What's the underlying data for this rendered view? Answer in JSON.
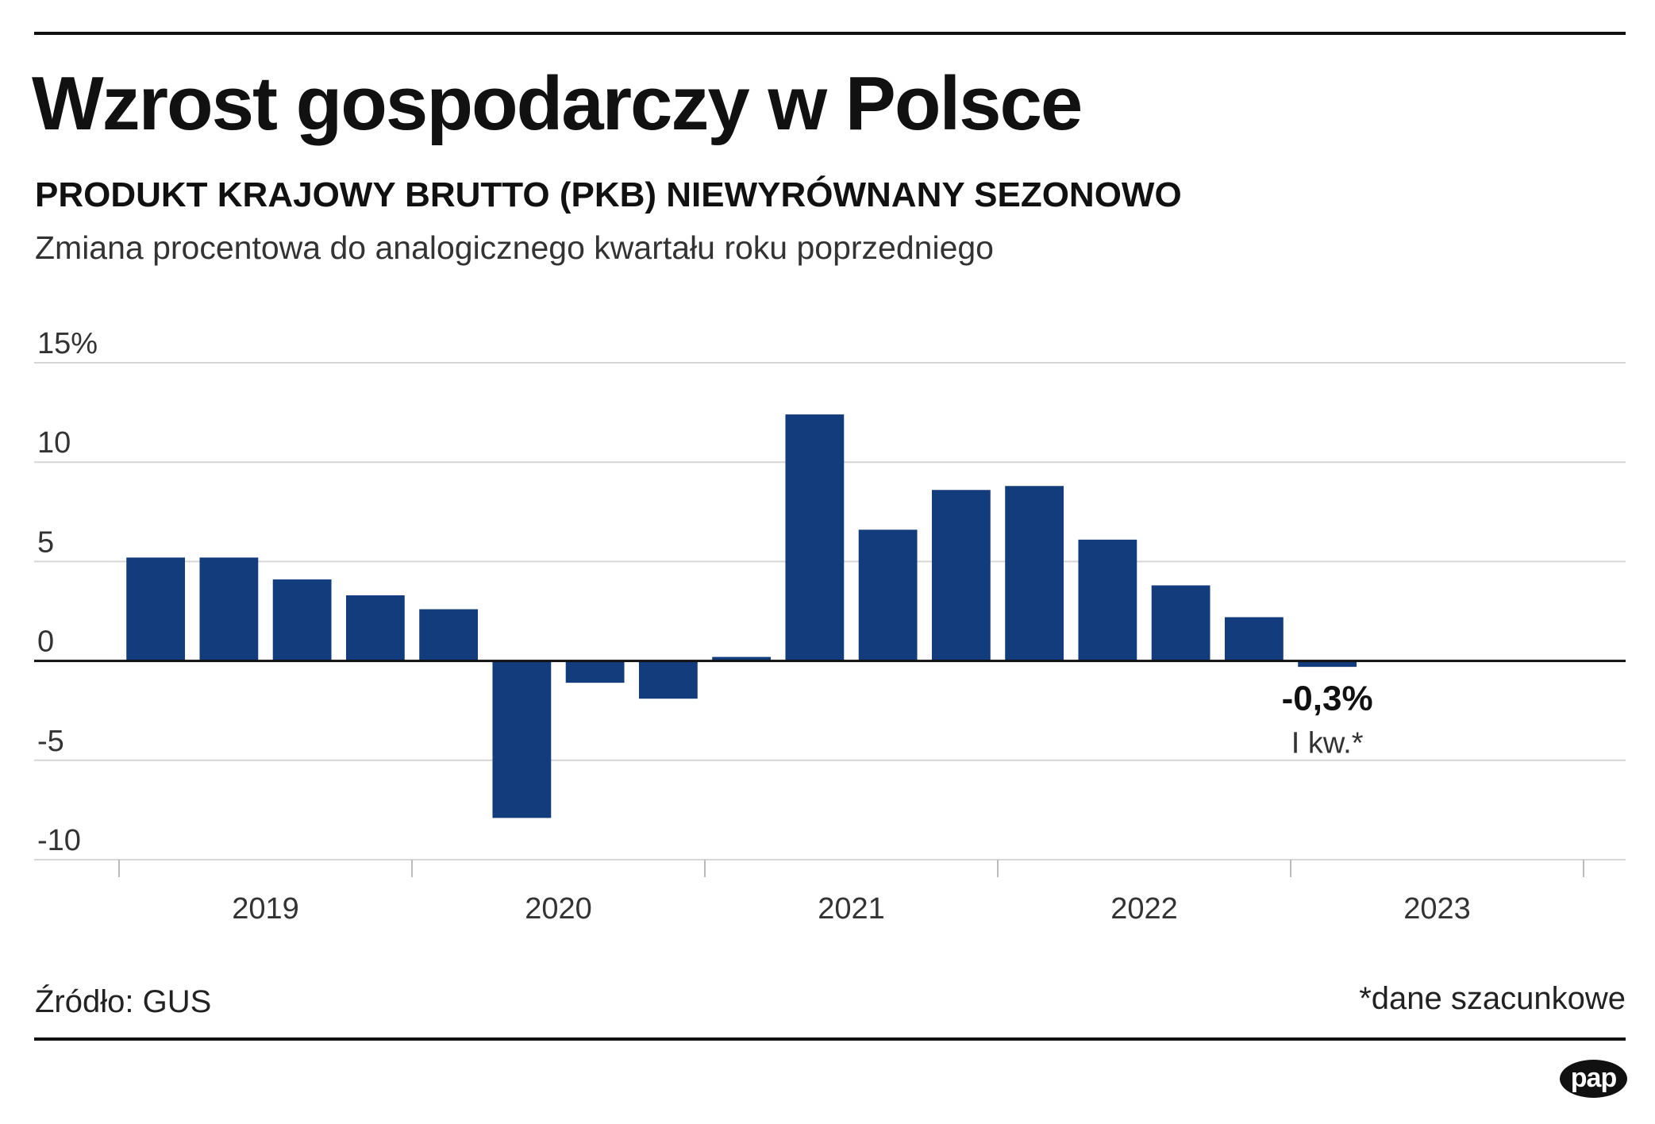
{
  "header": {
    "title": "Wzrost gospodarczy w Polsce",
    "subtitle": "PRODUKT KRAJOWY BRUTTO (PKB) NIEWYRÓWNANY SEZONOWO",
    "description": "Zmiana procentowa do analogicznego kwartału roku poprzedniego"
  },
  "footer": {
    "source": "Źródło: GUS",
    "footnote": "*dane szacunkowe",
    "logo": "pap"
  },
  "chart_data": {
    "type": "bar",
    "title": "Wzrost gospodarczy w Polsce",
    "subtitle": "PRODUKT KRAJOWY BRUTTO (PKB) NIEWYRÓWNANY SEZONOWO",
    "ylabel": "",
    "xlabel": "",
    "ylim": [
      -10,
      15
    ],
    "yticks": [
      {
        "value": 15,
        "label": "15%"
      },
      {
        "value": 10,
        "label": "10"
      },
      {
        "value": 5,
        "label": "5"
      },
      {
        "value": 0,
        "label": "0"
      },
      {
        "value": -5,
        "label": "-5"
      },
      {
        "value": -10,
        "label": "-10"
      }
    ],
    "categories": [
      "2019 Q1",
      "2019 Q2",
      "2019 Q3",
      "2019 Q4",
      "2020 Q1",
      "2020 Q2",
      "2020 Q3",
      "2020 Q4",
      "2021 Q1",
      "2021 Q2",
      "2021 Q3",
      "2021 Q4",
      "2022 Q1",
      "2022 Q2",
      "2022 Q3",
      "2022 Q4",
      "2023 Q1",
      "2023 Q2",
      "2023 Q3",
      "2023 Q4"
    ],
    "values": [
      5.2,
      5.2,
      4.1,
      3.3,
      2.6,
      -7.9,
      -1.1,
      -1.9,
      0.2,
      12.4,
      6.6,
      8.6,
      8.8,
      6.1,
      3.8,
      2.2,
      -0.3,
      null,
      null,
      null
    ],
    "year_labels": [
      "2019",
      "2020",
      "2021",
      "2022",
      "2023"
    ],
    "grid": true,
    "color": "#133c7c",
    "annotation": {
      "category": "2023 Q1",
      "value_label": "-0,3%",
      "sub_label": "I kw.*"
    }
  }
}
